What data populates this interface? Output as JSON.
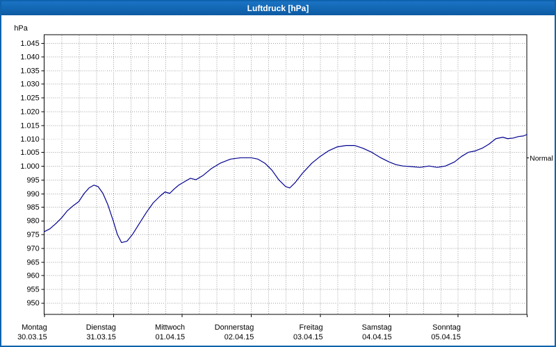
{
  "window": {
    "title": "Luftdruck [hPa]"
  },
  "colors": {
    "titlebar": "#0f62ac",
    "titlebar_text": "#ffffff",
    "frame": "#0f62ac",
    "plot_bg": "#ffffff",
    "grid": "#999999",
    "axis": "#000000",
    "series": "#000090"
  },
  "chart_data": {
    "type": "line",
    "title": "Luftdruck [hPa]",
    "y_axis": {
      "label": "hPa",
      "min": 950,
      "max": 1045,
      "step": 5,
      "tick_labels": [
        "1.045",
        "1.040",
        "1.035",
        "1.030",
        "1.025",
        "1.020",
        "1.015",
        "1.010",
        "1.005",
        "1.000",
        "995",
        "990",
        "985",
        "980",
        "975",
        "970",
        "965",
        "960",
        "955",
        "950"
      ]
    },
    "x_axis": {
      "days": [
        {
          "weekday": "Montag",
          "date": "30.03.15"
        },
        {
          "weekday": "Dienstag",
          "date": "31.03.15"
        },
        {
          "weekday": "Mittwoch",
          "date": "01.04.15"
        },
        {
          "weekday": "Donnerstag",
          "date": "02.04.15"
        },
        {
          "weekday": "Freitag",
          "date": "03.04.15"
        },
        {
          "weekday": "Samstag",
          "date": "04.04.15"
        },
        {
          "weekday": "Sonntag",
          "date": "05.04.15"
        }
      ],
      "minor_gridlines_per_day": 4
    },
    "annotations": {
      "normal_label": "Normal",
      "normal_value": 1003
    },
    "series": [
      {
        "name": "Luftdruck",
        "color": "#000090",
        "points": [
          [
            0.0,
            976
          ],
          [
            0.08,
            977
          ],
          [
            0.17,
            979
          ],
          [
            0.25,
            981
          ],
          [
            0.33,
            983.5
          ],
          [
            0.42,
            985.5
          ],
          [
            0.5,
            987
          ],
          [
            0.58,
            990
          ],
          [
            0.65,
            992
          ],
          [
            0.72,
            993
          ],
          [
            0.78,
            992.5
          ],
          [
            0.85,
            990
          ],
          [
            0.92,
            986
          ],
          [
            1.0,
            980
          ],
          [
            1.06,
            975
          ],
          [
            1.12,
            972
          ],
          [
            1.2,
            972.5
          ],
          [
            1.28,
            975
          ],
          [
            1.38,
            979
          ],
          [
            1.48,
            983
          ],
          [
            1.58,
            986.5
          ],
          [
            1.68,
            989
          ],
          [
            1.75,
            990.5
          ],
          [
            1.82,
            990
          ],
          [
            1.88,
            991.5
          ],
          [
            1.95,
            993
          ],
          [
            2.05,
            994.5
          ],
          [
            2.12,
            995.5
          ],
          [
            2.2,
            995
          ],
          [
            2.3,
            996.5
          ],
          [
            2.42,
            999
          ],
          [
            2.55,
            1001
          ],
          [
            2.7,
            1002.5
          ],
          [
            2.85,
            1003
          ],
          [
            3.0,
            1003
          ],
          [
            3.1,
            1002.5
          ],
          [
            3.2,
            1001
          ],
          [
            3.3,
            998.5
          ],
          [
            3.4,
            995
          ],
          [
            3.5,
            992.5
          ],
          [
            3.56,
            992
          ],
          [
            3.64,
            994
          ],
          [
            3.75,
            997.5
          ],
          [
            3.88,
            1001
          ],
          [
            4.0,
            1003.5
          ],
          [
            4.12,
            1005.5
          ],
          [
            4.25,
            1007
          ],
          [
            4.38,
            1007.5
          ],
          [
            4.5,
            1007.5
          ],
          [
            4.62,
            1006.5
          ],
          [
            4.75,
            1005
          ],
          [
            4.88,
            1003
          ],
          [
            5.0,
            1001.5
          ],
          [
            5.1,
            1000.5
          ],
          [
            5.2,
            1000
          ],
          [
            5.32,
            999.8
          ],
          [
            5.45,
            999.5
          ],
          [
            5.58,
            1000
          ],
          [
            5.7,
            999.5
          ],
          [
            5.82,
            1000
          ],
          [
            5.95,
            1001.5
          ],
          [
            6.05,
            1003.5
          ],
          [
            6.15,
            1005
          ],
          [
            6.25,
            1005.5
          ],
          [
            6.35,
            1006.5
          ],
          [
            6.45,
            1008
          ],
          [
            6.55,
            1010
          ],
          [
            6.65,
            1010.5
          ],
          [
            6.72,
            1010
          ],
          [
            6.8,
            1010.2
          ],
          [
            6.88,
            1010.8
          ],
          [
            6.95,
            1011
          ],
          [
            7.0,
            1011.5
          ]
        ]
      }
    ]
  }
}
